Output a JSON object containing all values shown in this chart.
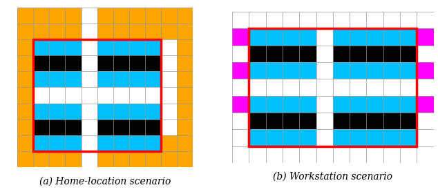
{
  "fig_width": 6.34,
  "fig_height": 2.78,
  "dpi": 100,
  "colors": {
    "orange": "#FFA500",
    "cyan": "#00BFFF",
    "black": "#000000",
    "white": "#FFFFFF",
    "magenta": "#FF00FF",
    "red": "#FF0000",
    "grid": "#999999"
  },
  "label_a": "(a) Home-location scenario",
  "label_b": "(b) Workstation scenario"
}
